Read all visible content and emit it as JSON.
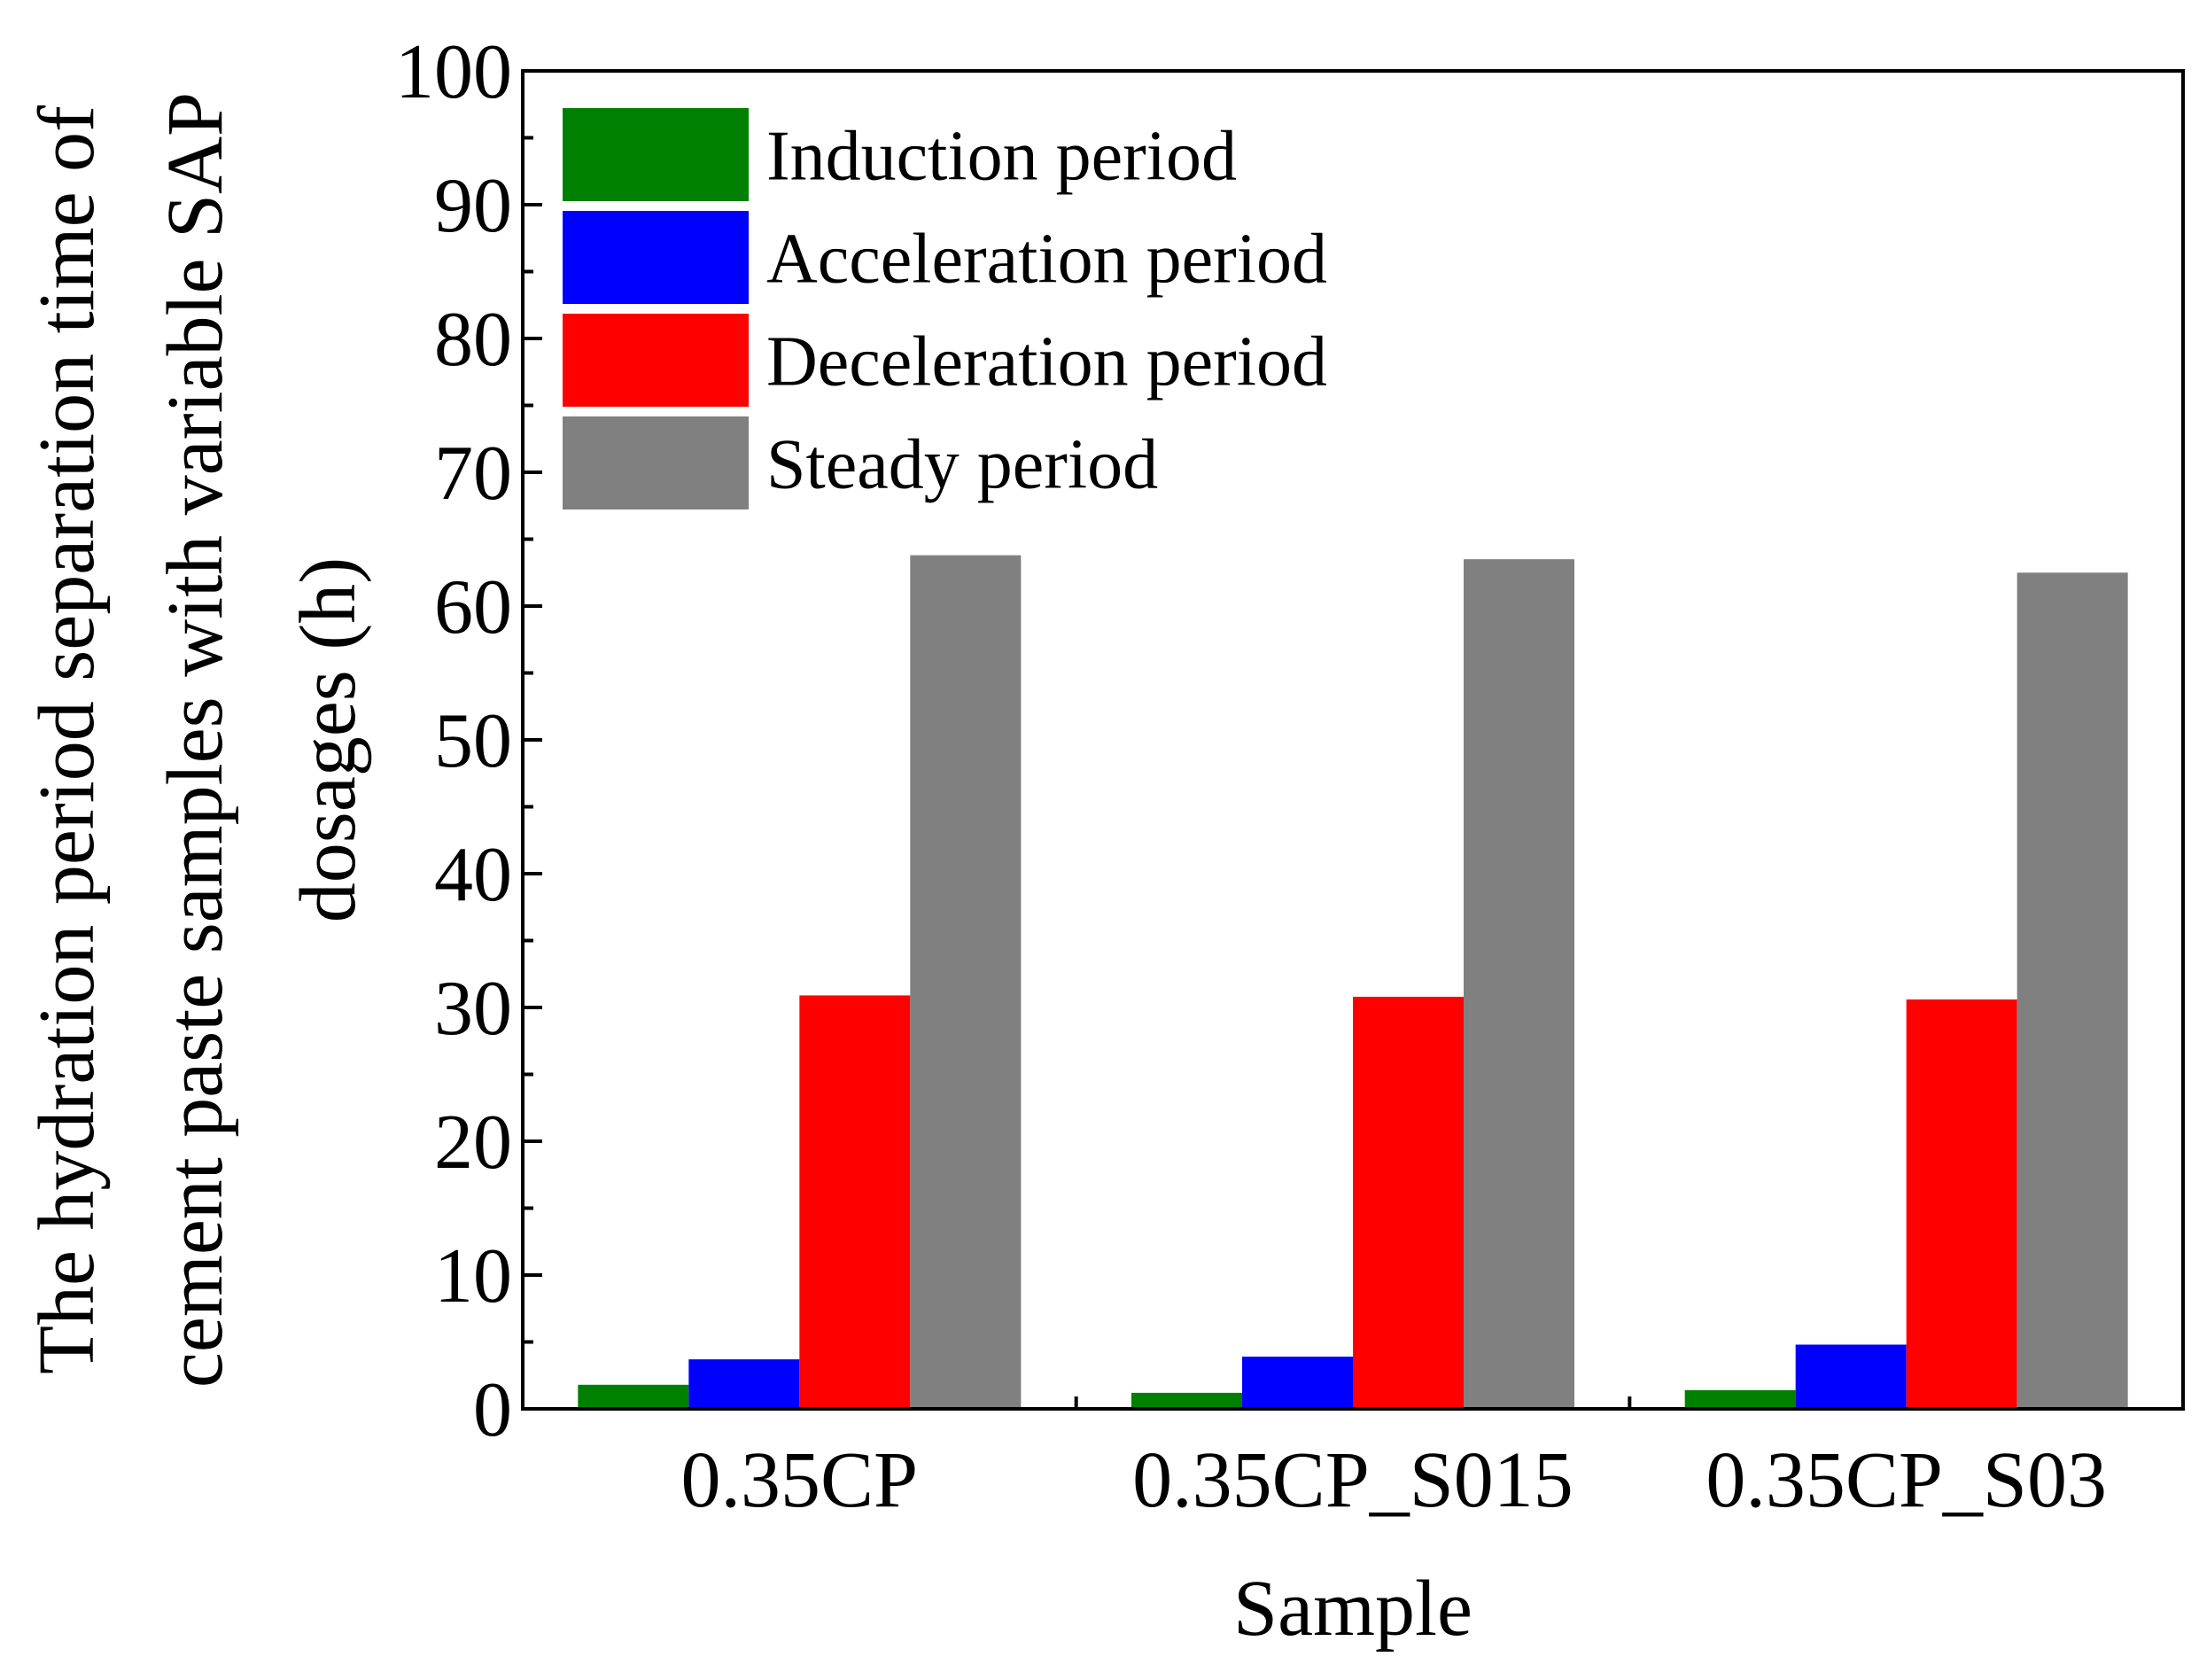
{
  "chart_data": {
    "type": "bar",
    "title": "",
    "xlabel": "Sample",
    "ylabel_line1": "The hydration period separation time of",
    "ylabel_line2": "cement paste samples with variable SAP",
    "ylabel_line3": "dosages (h)",
    "ylim": [
      0,
      100
    ],
    "yticks": [
      0,
      10,
      20,
      30,
      40,
      50,
      60,
      70,
      80,
      90,
      100
    ],
    "categories": [
      "0.35CP",
      "0.35CP_S015",
      "0.35CP_S03"
    ],
    "series": [
      {
        "name": "Induction period",
        "color": "#008000",
        "values": [
          1.8,
          1.2,
          1.4
        ]
      },
      {
        "name": "Acceleration period",
        "color": "#0000ff",
        "values": [
          3.7,
          3.9,
          4.8
        ]
      },
      {
        "name": "Deceleration period",
        "color": "#ff0000",
        "values": [
          30.9,
          30.8,
          30.6
        ]
      },
      {
        "name": "Steady period",
        "color": "#808080",
        "values": [
          63.8,
          63.5,
          62.5
        ]
      }
    ],
    "legend_position": "top-left",
    "grid": false
  }
}
